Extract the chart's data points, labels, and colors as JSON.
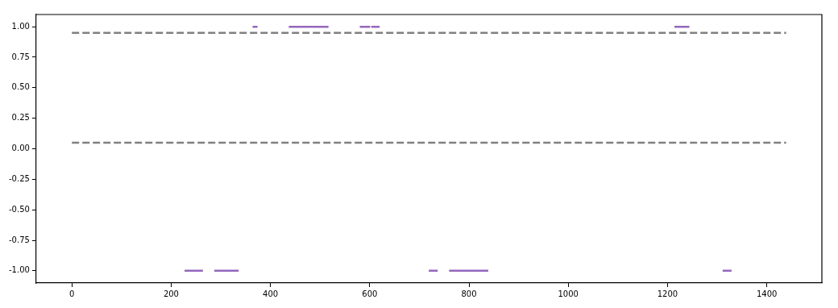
{
  "chart_data": {
    "type": "line",
    "xlim": [
      -72,
      1511
    ],
    "xticks": [
      0,
      200,
      400,
      600,
      800,
      1000,
      1200,
      1400
    ],
    "ylim": [
      -1.1,
      1.1
    ],
    "yticks": [
      {
        "value": 1,
        "label": "1.00"
      },
      {
        "value": 0.75,
        "label": "0.75"
      },
      {
        "value": 0.5,
        "label": "0.50"
      },
      {
        "value": 0.25,
        "label": "0.25"
      },
      {
        "value": 0,
        "label": "0.00"
      },
      {
        "value": -0.25,
        "label": "-0.25"
      },
      {
        "value": -0.5,
        "label": "-0.50"
      },
      {
        "value": -0.75,
        "label": "-0.75"
      },
      {
        "value": -1,
        "label": "-1.00"
      }
    ],
    "grid": false,
    "legend": false,
    "marker": "none",
    "series": [
      {
        "color": "#808080",
        "line_style": "dashed",
        "x": [
          0,
          1439
        ],
        "values": [
          0.95,
          0.95
        ]
      },
      {
        "color": "#808080",
        "line_style": "dashed",
        "x": [
          0,
          1439
        ],
        "values": [
          0.05,
          0.05
        ]
      },
      {
        "color": "#9467bd",
        "line_style": "solid",
        "x": [
          364,
          374,
          400,
          437,
          517,
          550,
          580,
          601,
          602,
          603,
          620,
          900,
          1214,
          1244
        ],
        "values": [
          1,
          1,
          null,
          1,
          1,
          null,
          1,
          1,
          null,
          1,
          1,
          null,
          1,
          1
        ]
      },
      {
        "color": "#9467bd",
        "line_style": "solid",
        "x": [
          227,
          264,
          275,
          287,
          336,
          500,
          719,
          737,
          750,
          760,
          839,
          1000,
          1311,
          1329
        ],
        "values": [
          -1,
          -1,
          null,
          -1,
          -1,
          null,
          -1,
          -1,
          null,
          -1,
          -1,
          null,
          -1,
          -1
        ]
      }
    ]
  }
}
